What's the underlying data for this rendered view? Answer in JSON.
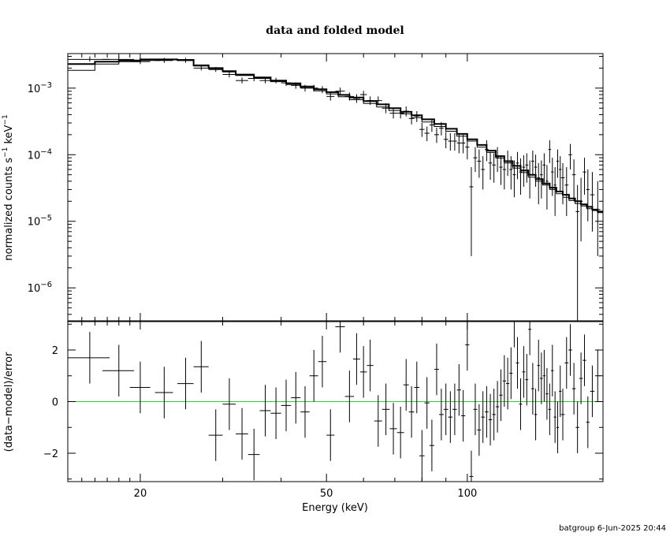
{
  "footer": "batgroup  6-Jun-2025 20:44",
  "chart_data": [
    {
      "type": "scatter",
      "title": "data and folded model",
      "xlabel": "",
      "ylabel": "normalized counts s",
      "ylabel_unit": "keV",
      "ylabel_exp": "−1",
      "xscale": "log",
      "yscale": "log",
      "xlim": [
        14,
        195
      ],
      "ylim": [
        3.2e-07,
        0.0033
      ],
      "yticks": [
        {
          "value": 1e-06,
          "mant": "10",
          "exp": "−6"
        },
        {
          "value": 1e-05,
          "mant": "10",
          "exp": "−5"
        },
        {
          "value": 0.0001,
          "mant": "10",
          "exp": "−4"
        },
        {
          "value": 0.001,
          "mant": "10",
          "exp": "−3"
        }
      ],
      "series": [
        {
          "kind": "data",
          "x": [
            15.6,
            18.0,
            20.0,
            22.5,
            25.0,
            27.0,
            29.0,
            31.0,
            33.0,
            35.0,
            37.0,
            39.0,
            41.0,
            43.0,
            45.0,
            47.0,
            49.0,
            51.0,
            53.5,
            56.0,
            58.0,
            60.0,
            62.0,
            64.5,
            67.0,
            69.5,
            72.0,
            74.0,
            76.0,
            78.0,
            80.0,
            82.0,
            84.0,
            86.0,
            88.0,
            90.0,
            92.0,
            94.0,
            96.0,
            98.0,
            100.0,
            102.0,
            104.0,
            106.0,
            108.0,
            110.0,
            112.0,
            114.0,
            116.0,
            118.0,
            120.0,
            122.0,
            124.0,
            126.0,
            128.0,
            130.0,
            132.0,
            134.0,
            136.0,
            138.0,
            140.0,
            142.0,
            144.0,
            146.0,
            148.0,
            150.0,
            152.0,
            154.0,
            156.0,
            158.0,
            160.0,
            163.0,
            166.0,
            169.0,
            172.0,
            175.0,
            178.0,
            181.0,
            185.0,
            190.0
          ],
          "xerr": [
            1.6,
            1.4,
            1.0,
            1.0,
            1.0,
            1.0,
            1.0,
            1.0,
            1.0,
            1.0,
            1.0,
            1.0,
            1.0,
            1.0,
            1.0,
            1.0,
            1.0,
            1.0,
            1.25,
            1.25,
            1.0,
            1.0,
            1.0,
            1.25,
            1.25,
            1.25,
            1.25,
            1.0,
            1.0,
            1.0,
            1.0,
            1.0,
            1.0,
            1.0,
            1.0,
            1.0,
            1.0,
            1.0,
            1.0,
            1.0,
            1.0,
            1.0,
            1.0,
            1.0,
            1.0,
            1.0,
            1.0,
            1.0,
            1.0,
            1.0,
            1.0,
            1.0,
            1.0,
            1.0,
            1.0,
            1.0,
            1.0,
            1.0,
            1.0,
            1.0,
            1.0,
            1.0,
            1.0,
            1.0,
            1.0,
            1.0,
            1.0,
            1.0,
            1.0,
            1.0,
            1.5,
            1.5,
            1.5,
            1.5,
            1.5,
            1.5,
            1.5,
            1.5,
            2.0,
            2.5
          ],
          "y": [
            0.0027,
            0.0027,
            0.0025,
            0.0026,
            0.0026,
            0.002,
            0.0019,
            0.0016,
            0.0013,
            0.0014,
            0.0013,
            0.0013,
            0.0012,
            0.0011,
            0.001,
            0.001,
            0.00095,
            0.00075,
            0.0009,
            0.00075,
            0.0007,
            0.0008,
            0.00065,
            0.00065,
            0.0005,
            0.00042,
            0.00042,
            0.00045,
            0.00035,
            0.00038,
            0.00024,
            0.00021,
            0.00028,
            0.0002,
            0.00025,
            0.00017,
            0.00016,
            0.00016,
            0.00015,
            0.00015,
            0.00013,
            3.3e-05,
            9e-05,
            8e-05,
            6e-05,
            0.00012,
            7.5e-05,
            7e-05,
            9e-05,
            6.5e-05,
            6e-05,
            8e-05,
            6e-05,
            5e-05,
            7.5e-05,
            5.5e-05,
            6.5e-05,
            7e-05,
            5e-05,
            8e-05,
            6.5e-05,
            4.5e-05,
            5e-05,
            7e-05,
            4e-05,
            0.00012,
            5.5e-05,
            3.5e-05,
            8e-05,
            6e-05,
            4.5e-05,
            3.5e-05,
            0.0001,
            5e-05,
            1.4e-05,
            2e-05,
            5.5e-05,
            3e-05,
            2.5e-05,
            1.5e-05
          ],
          "ylo": [
            0.0025,
            0.0025,
            0.0023,
            0.0024,
            0.0024,
            0.00185,
            0.00175,
            0.00145,
            0.00118,
            0.00127,
            0.00118,
            0.00118,
            0.00108,
            0.00098,
            0.00089,
            0.00089,
            0.00084,
            0.00065,
            0.00079,
            0.00065,
            0.0006,
            0.0007,
            0.00056,
            0.00056,
            0.00042,
            0.00035,
            0.00035,
            0.000375,
            0.000285,
            0.00031,
            0.000185,
            0.00016,
            0.00022,
            0.00015,
            0.000195,
            0.000125,
            0.000115,
            0.000115,
            0.000105,
            0.000105,
            8.5e-05,
            3e-06,
            5.5e-05,
            4.5e-05,
            3e-05,
            8e-05,
            4.2e-05,
            3.8e-05,
            5.5e-05,
            3.5e-05,
            3e-05,
            4.8e-05,
            3e-05,
            2.3e-05,
            4.3e-05,
            2.5e-05,
            3.3e-05,
            3.8e-05,
            2.2e-05,
            4.8e-05,
            3.3e-05,
            1.8e-05,
            2.2e-05,
            3.8e-05,
            1.5e-05,
            7.5e-05,
            2.4e-05,
            1.2e-05,
            4.5e-05,
            2.8e-05,
            1.8e-05,
            1.2e-05,
            6e-05,
            2e-05,
            3.2e-07,
            5e-06,
            2.5e-05,
            1e-05,
            7e-06,
            3e-06
          ],
          "yhi": [
            0.003,
            0.003,
            0.00275,
            0.00285,
            0.00285,
            0.0022,
            0.00208,
            0.00176,
            0.00144,
            0.00154,
            0.00143,
            0.00143,
            0.00133,
            0.00122,
            0.00112,
            0.00112,
            0.00107,
            0.00086,
            0.00102,
            0.00086,
            0.00081,
            0.00091,
            0.00075,
            0.00075,
            0.00059,
            0.0005,
            0.0005,
            0.00053,
            0.00042,
            0.00045,
            0.0003,
            0.000265,
            0.000345,
            0.000255,
            0.00031,
            0.00022,
            0.00021,
            0.00021,
            0.0002,
            0.0002,
            0.00018,
            6.5e-05,
            0.00013,
            0.00012,
            9.5e-05,
            0.000165,
            0.00011,
            0.000105,
            0.00013,
            9.8e-05,
            9.5e-05,
            0.000115,
            9.5e-05,
            8.2e-05,
            0.00011,
            8.8e-05,
            9.8e-05,
            0.000105,
            8.2e-05,
            0.000115,
            0.0001,
            7.5e-05,
            8.2e-05,
            0.000105,
            7e-05,
            0.000165,
            9e-05,
            6.5e-05,
            0.00012,
            9.5e-05,
            7.5e-05,
            6.5e-05,
            0.000145,
            8.5e-05,
            3.5e-05,
            4.5e-05,
            9e-05,
            6e-05,
            5.5e-05,
            4e-05
          ]
        },
        {
          "kind": "model-a",
          "x": [
            14,
            16,
            18,
            20,
            22,
            24,
            26,
            28,
            30,
            32,
            35,
            38,
            41,
            44,
            47,
            50,
            53,
            56,
            60,
            64,
            68,
            72,
            76,
            80,
            85,
            90,
            95,
            100,
            105,
            110,
            115,
            120,
            125,
            130,
            135,
            140,
            145,
            150,
            155,
            160,
            165,
            170,
            175,
            180,
            185,
            190,
            195
          ],
          "y": [
            0.0023,
            0.0025,
            0.0026,
            0.0027,
            0.0027,
            0.00265,
            0.0022,
            0.002,
            0.0018,
            0.0016,
            0.00145,
            0.0013,
            0.00118,
            0.00106,
            0.00096,
            0.00087,
            0.00079,
            0.00072,
            0.00064,
            0.00057,
            0.0005,
            0.00044,
            0.00039,
            0.00034,
            0.00029,
            0.000245,
            0.000205,
            0.00017,
            0.00014,
            0.000115,
            9.5e-05,
            8e-05,
            6.8e-05,
            5.8e-05,
            5e-05,
            4.3e-05,
            3.7e-05,
            3.2e-05,
            2.8e-05,
            2.5e-05,
            2.2e-05,
            2e-05,
            1.8e-05,
            1.65e-05,
            1.5e-05,
            1.4e-05,
            1.3e-05
          ]
        },
        {
          "kind": "model-b",
          "x": [
            14,
            16,
            18,
            20,
            22,
            24,
            26,
            28,
            30,
            32,
            35,
            38,
            41,
            44,
            47,
            50,
            53,
            56,
            60,
            64,
            68,
            72,
            76,
            80,
            85,
            90,
            95,
            100,
            105,
            110,
            115,
            120,
            125,
            130,
            135,
            140,
            145,
            150,
            155,
            160,
            165,
            170,
            175,
            180,
            185,
            190,
            195
          ],
          "y": [
            0.00185,
            0.0023,
            0.0025,
            0.0026,
            0.00265,
            0.0026,
            0.00215,
            0.00195,
            0.00175,
            0.00155,
            0.0014,
            0.00125,
            0.00113,
            0.00101,
            0.00091,
            0.00082,
            0.00074,
            0.00067,
            0.00059,
            0.00052,
            0.00046,
            0.00041,
            0.00036,
            0.00031,
            0.000265,
            0.000225,
            0.00019,
            0.00016,
            0.00013,
            0.000108,
            8.9e-05,
            7.5e-05,
            6.3e-05,
            5.4e-05,
            4.6e-05,
            4e-05,
            3.5e-05,
            3e-05,
            2.6e-05,
            2.3e-05,
            2.05e-05,
            1.85e-05,
            1.7e-05,
            1.55e-05,
            1.45e-05,
            1.35e-05,
            1.25e-05
          ]
        }
      ]
    },
    {
      "type": "scatter",
      "title": "",
      "xlabel": "Energy (keV)",
      "ylabel": "(data−model)/error",
      "xscale": "log",
      "yscale": "linear",
      "xlim": [
        14,
        195
      ],
      "ylim": [
        -3.1,
        3.1
      ],
      "xticks": [
        20,
        50,
        100
      ],
      "yticks": [
        -2,
        0,
        2
      ],
      "reference_line": {
        "y": 0,
        "color": "#33cc33"
      },
      "series": [
        {
          "kind": "data",
          "x": [
            15.6,
            18.0,
            20.0,
            22.5,
            25.0,
            27.0,
            29.0,
            31.0,
            33.0,
            35.0,
            37.0,
            39.0,
            41.0,
            43.0,
            45.0,
            47.0,
            49.0,
            51.0,
            53.5,
            56.0,
            58.0,
            60.0,
            62.0,
            64.5,
            67.0,
            69.5,
            72.0,
            74.0,
            76.0,
            78.0,
            80.0,
            82.0,
            84.0,
            86.0,
            88.0,
            90.0,
            92.0,
            94.0,
            96.0,
            98.0,
            100.0,
            102.0,
            104.0,
            106.0,
            108.0,
            110.0,
            112.0,
            114.0,
            116.0,
            118.0,
            120.0,
            122.0,
            124.0,
            126.0,
            128.0,
            130.0,
            132.0,
            134.0,
            136.0,
            138.0,
            140.0,
            142.0,
            144.0,
            146.0,
            148.0,
            150.0,
            152.0,
            154.0,
            156.0,
            158.0,
            160.0,
            163.0,
            166.0,
            169.0,
            172.0,
            175.0,
            178.0,
            181.0,
            185.0,
            190.0
          ],
          "xerr": [
            1.6,
            1.4,
            1.0,
            1.0,
            1.0,
            1.0,
            1.0,
            1.0,
            1.0,
            1.0,
            1.0,
            1.0,
            1.0,
            1.0,
            1.0,
            1.0,
            1.0,
            1.0,
            1.25,
            1.25,
            1.0,
            1.0,
            1.0,
            1.25,
            1.25,
            1.25,
            1.25,
            1.0,
            1.0,
            1.0,
            1.0,
            1.0,
            1.0,
            1.0,
            1.0,
            1.0,
            1.0,
            1.0,
            1.0,
            1.0,
            1.0,
            1.0,
            1.0,
            1.0,
            1.0,
            1.0,
            1.0,
            1.0,
            1.0,
            1.0,
            1.0,
            1.0,
            1.0,
            1.0,
            1.0,
            1.0,
            1.0,
            1.0,
            1.0,
            1.0,
            1.0,
            1.0,
            1.0,
            1.0,
            1.0,
            1.0,
            1.0,
            1.0,
            1.0,
            1.0,
            1.5,
            1.5,
            1.5,
            1.5,
            1.5,
            1.5,
            1.5,
            1.5,
            2.0,
            2.5
          ],
          "y": [
            1.7,
            1.2,
            0.55,
            0.35,
            0.7,
            1.35,
            -1.3,
            -0.1,
            -1.25,
            -2.05,
            -0.35,
            -0.45,
            -0.15,
            0.15,
            -0.4,
            1.0,
            1.55,
            -1.3,
            2.9,
            0.2,
            1.65,
            1.15,
            1.4,
            -0.75,
            -0.3,
            -1.05,
            -1.2,
            0.65,
            -0.4,
            0.55,
            -2.1,
            -0.05,
            -1.7,
            1.25,
            -0.5,
            -0.3,
            -0.6,
            -0.3,
            0.45,
            -0.55,
            2.2,
            -2.9,
            -0.3,
            -1.1,
            -0.6,
            -0.4,
            -0.7,
            -0.5,
            -0.2,
            0.25,
            0.8,
            0.7,
            1.1,
            3.1,
            1.5,
            -0.1,
            1.15,
            0.85,
            2.8,
            0.5,
            -0.5,
            1.4,
            0.9,
            1.0,
            0.3,
            -0.3,
            1.2,
            -0.6,
            -1.0,
            0.4,
            -0.5,
            1.5,
            2.0,
            0.5,
            -1.0,
            0.9,
            1.6,
            -0.8,
            0.4,
            1.0
          ],
          "yerr": 1.0
        }
      ]
    }
  ]
}
